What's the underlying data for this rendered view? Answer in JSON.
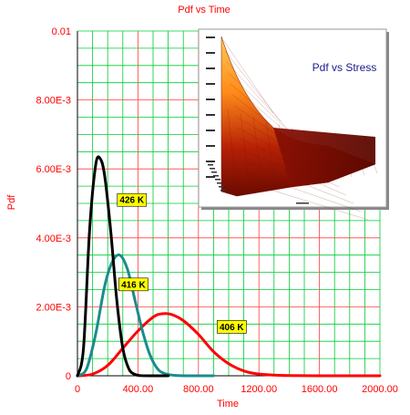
{
  "chart_data": {
    "type": "line",
    "title": "Pdf vs Time",
    "xlabel": "Time",
    "ylabel": "Pdf",
    "xlim": [
      0,
      2000
    ],
    "ylim": [
      0,
      0.01
    ],
    "x_tick_labels": [
      "0",
      "400.00",
      "800.00",
      "1200.00",
      "1600.00",
      "2000.00"
    ],
    "y_tick_labels": [
      "0",
      "2.00E-3",
      "4.00E-3",
      "6.00E-3",
      "8.00E-3",
      "0.01"
    ],
    "grid": true,
    "series": [
      {
        "name": "426 K",
        "color": "#000000",
        "x": [
          0,
          40,
          80,
          120,
          150,
          180,
          220,
          260,
          300,
          340,
          380,
          420,
          500,
          600
        ],
        "y": [
          0,
          0.0008,
          0.0042,
          0.0061,
          0.0063,
          0.0058,
          0.0042,
          0.0022,
          0.0008,
          0.0002,
          4e-05,
          5e-06,
          0,
          0
        ]
      },
      {
        "name": "416 K",
        "color": "#1a8c8c",
        "x": [
          0,
          60,
          120,
          180,
          230,
          280,
          330,
          380,
          430,
          480,
          530,
          580,
          650,
          750,
          900
        ],
        "y": [
          0,
          0.0002,
          0.0012,
          0.0026,
          0.0033,
          0.0035,
          0.0031,
          0.0022,
          0.0013,
          0.0006,
          0.0002,
          6e-05,
          1e-05,
          0,
          0
        ]
      },
      {
        "name": "406 K",
        "color": "#ff0000",
        "x": [
          0,
          100,
          200,
          300,
          400,
          500,
          560,
          620,
          700,
          800,
          900,
          1000,
          1100,
          1200,
          1400,
          1700,
          2000
        ],
        "y": [
          0,
          5e-05,
          0.0003,
          0.0008,
          0.0013,
          0.0017,
          0.0018,
          0.00178,
          0.0016,
          0.0012,
          0.0007,
          0.00035,
          0.00014,
          5e-05,
          5e-06,
          0,
          0
        ]
      }
    ],
    "annotations": [
      "426 K",
      "416 K",
      "406 K"
    ],
    "inset": {
      "title": "Pdf vs Stress",
      "type": "3d-surface"
    }
  },
  "colors": {
    "axis_text": "#ff0000",
    "grid_major": "#ff4040",
    "grid_minor": "#00cc33",
    "tag_fill": "#ffff00",
    "inset_title": "#1a1a8c"
  }
}
